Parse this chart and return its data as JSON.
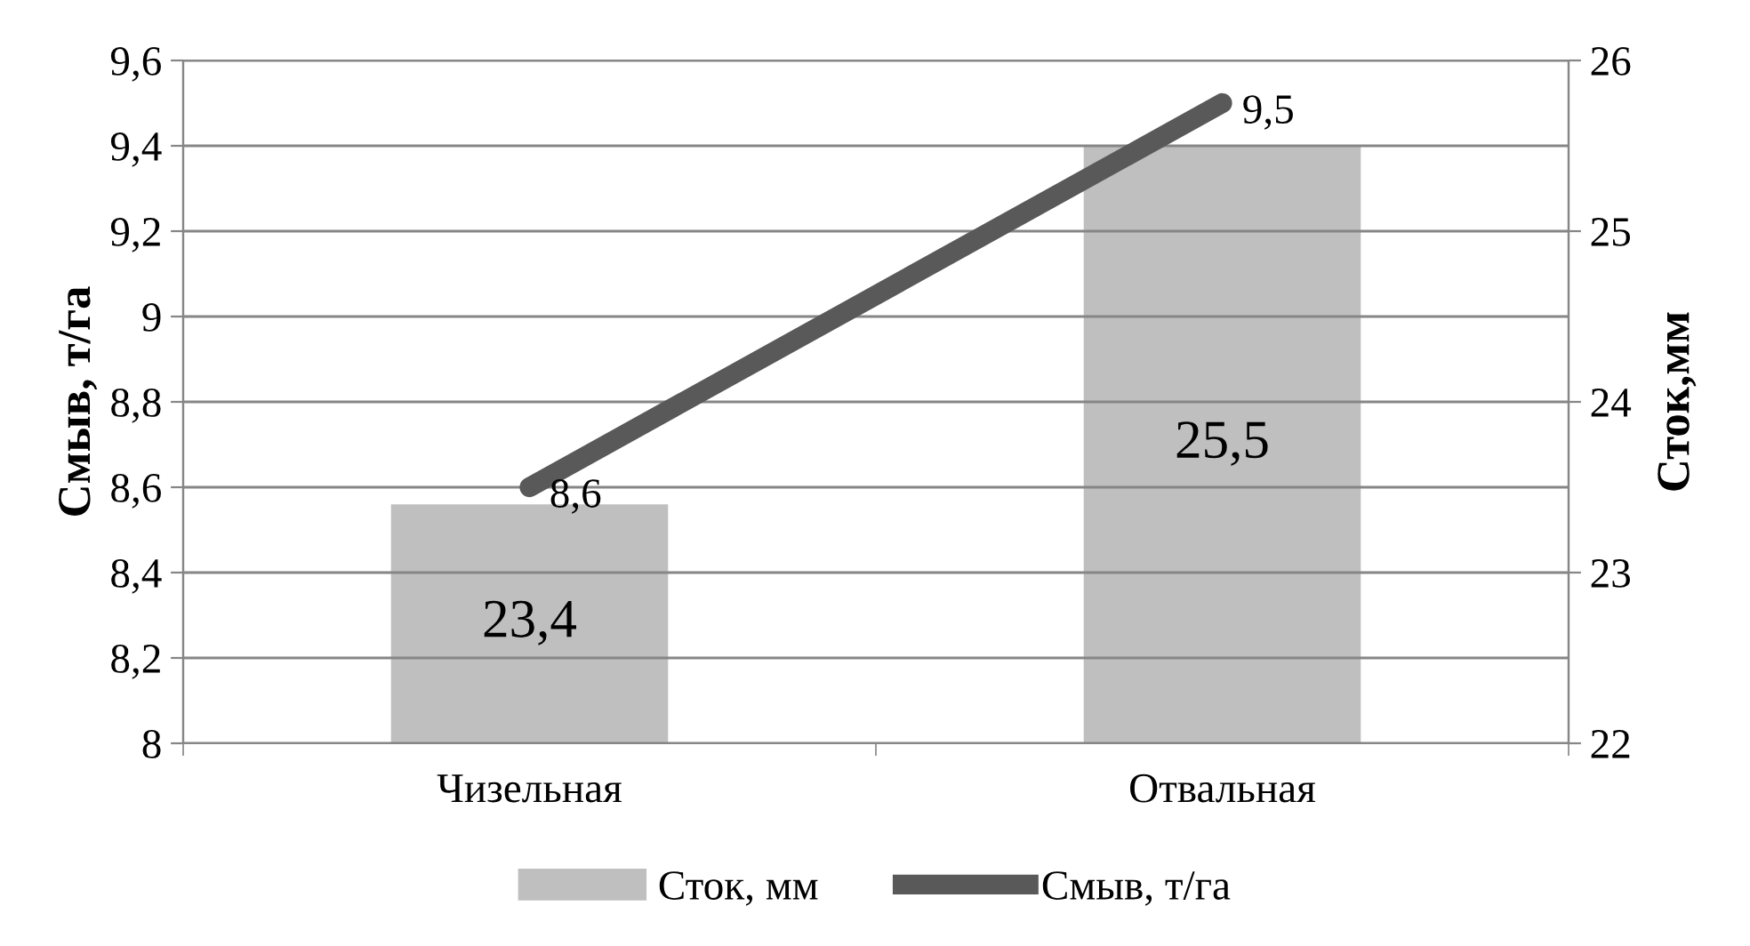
{
  "chart_data": {
    "type": "bar",
    "categories": [
      "Чизельная",
      "Отвальная"
    ],
    "ylabel": "Смыв, т/га",
    "y2label": "Сток,мм",
    "series": [
      {
        "name": "Сток, мм",
        "axis": "y2",
        "color": "#bfbfbf",
        "values": [
          23.4,
          25.5
        ],
        "value_labels": [
          "23,4",
          "25,5"
        ]
      },
      {
        "name": "Смыв, т/га",
        "type": "line",
        "axis": "y",
        "color": "#595959",
        "values": [
          8.6,
          9.5
        ],
        "value_labels": [
          "8,6",
          "9,5"
        ]
      }
    ],
    "ylim": [
      8,
      9.6
    ],
    "yticks": [
      8,
      {
        "value": 8.2,
        "label": "8,2"
      },
      {
        "value": 8.4,
        "label": "8,4"
      },
      {
        "value": 8.6,
        "label": "8,6"
      },
      {
        "value": 8.8,
        "label": "8,8"
      },
      9,
      {
        "value": 9.2,
        "label": "9,2"
      },
      {
        "value": 9.4,
        "label": "9,4"
      },
      {
        "value": 9.6,
        "label": "9,6"
      }
    ],
    "y2lim": [
      22,
      26
    ],
    "y2ticks": [
      22,
      23,
      24,
      25,
      26
    ],
    "grid": "y",
    "legend": "bottom",
    "line_style": "solid"
  }
}
